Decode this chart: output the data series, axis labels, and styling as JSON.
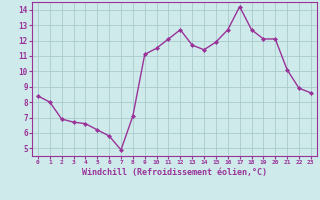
{
  "x": [
    0,
    1,
    2,
    3,
    4,
    5,
    6,
    7,
    8,
    9,
    10,
    11,
    12,
    13,
    14,
    15,
    16,
    17,
    18,
    19,
    20,
    21,
    22,
    23
  ],
  "y": [
    8.4,
    8.0,
    6.9,
    6.7,
    6.6,
    6.2,
    5.8,
    4.9,
    7.1,
    11.1,
    11.5,
    12.1,
    12.7,
    11.7,
    11.4,
    11.9,
    12.7,
    14.2,
    12.7,
    12.1,
    12.1,
    10.1,
    8.9,
    8.6
  ],
  "line_color": "#993399",
  "marker": "D",
  "marker_size": 2.0,
  "bg_color": "#ceeaea",
  "grid_color": "#aacccc",
  "xlabel": "Windchill (Refroidissement éolien,°C)",
  "tick_color": "#993399",
  "xlim": [
    -0.5,
    23.5
  ],
  "ylim": [
    4.5,
    14.5
  ],
  "yticks": [
    5,
    6,
    7,
    8,
    9,
    10,
    11,
    12,
    13,
    14
  ],
  "xticks": [
    0,
    1,
    2,
    3,
    4,
    5,
    6,
    7,
    8,
    9,
    10,
    11,
    12,
    13,
    14,
    15,
    16,
    17,
    18,
    19,
    20,
    21,
    22,
    23
  ],
  "linewidth": 1.0,
  "axes_color": "#993399",
  "spine_color": "#993399"
}
